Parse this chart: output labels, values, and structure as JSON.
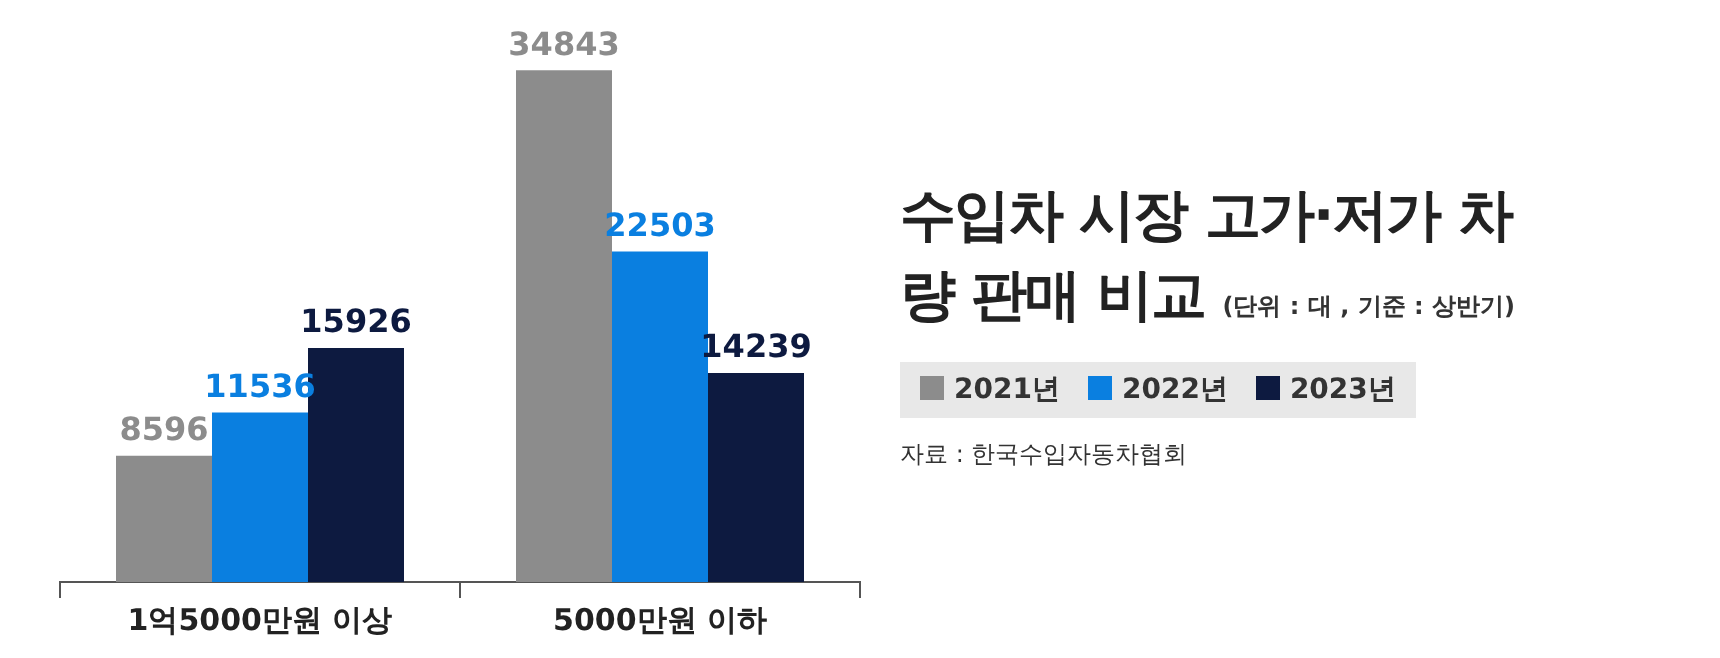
{
  "chart_data": {
    "type": "bar",
    "title": "수입차 시장 고가·저가 차량 판매 비교",
    "subtitle": "(단위 : 대 , 기준 : 상반기)",
    "categories": [
      "1억5000만원 이상",
      "5000만원 이하"
    ],
    "series": [
      {
        "name": "2021년",
        "color": "#8c8c8c",
        "values": [
          8596,
          34843
        ]
      },
      {
        "name": "2022년",
        "color": "#0a7fe0",
        "values": [
          11536,
          22503
        ]
      },
      {
        "name": "2023년",
        "color": "#0d1a40",
        "values": [
          15926,
          14239
        ]
      }
    ],
    "data_labels": true,
    "grid": false,
    "legend": "right",
    "annotations": [
      "자료 : 한국수입자동차협회"
    ]
  }
}
